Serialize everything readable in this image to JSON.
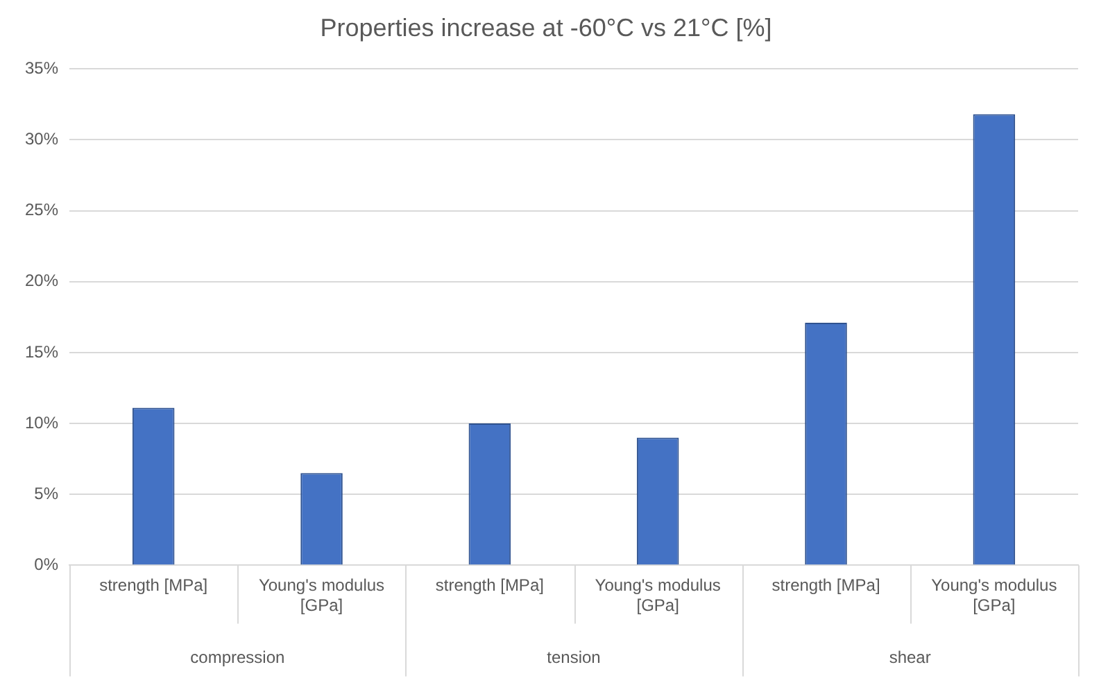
{
  "chart_data": {
    "type": "bar",
    "title": "Properties increase at -60°C vs 21°C [%]",
    "categories": [
      "strength [MPa]",
      "Young's modulus [GPa]",
      "strength [MPa]",
      "Young's modulus [GPa]",
      "strength [MPa]",
      "Young's modulus [GPa]"
    ],
    "values": [
      11.1,
      6.5,
      10,
      9,
      17.1,
      31.8
    ],
    "color": "#4472c4",
    "ylim": [
      0,
      35
    ],
    "yticks": [
      {
        "value": 0,
        "label": "0%"
      },
      {
        "value": 5,
        "label": "5%"
      },
      {
        "value": 10,
        "label": "10%"
      },
      {
        "value": 15,
        "label": "15%"
      },
      {
        "value": 20,
        "label": "20%"
      },
      {
        "value": 25,
        "label": "25%"
      },
      {
        "value": 30,
        "label": "30%"
      },
      {
        "value": 35,
        "label": "35%"
      }
    ],
    "grid": "y",
    "legend": false,
    "annotations": [
      "compression",
      "tension",
      "shear"
    ]
  }
}
